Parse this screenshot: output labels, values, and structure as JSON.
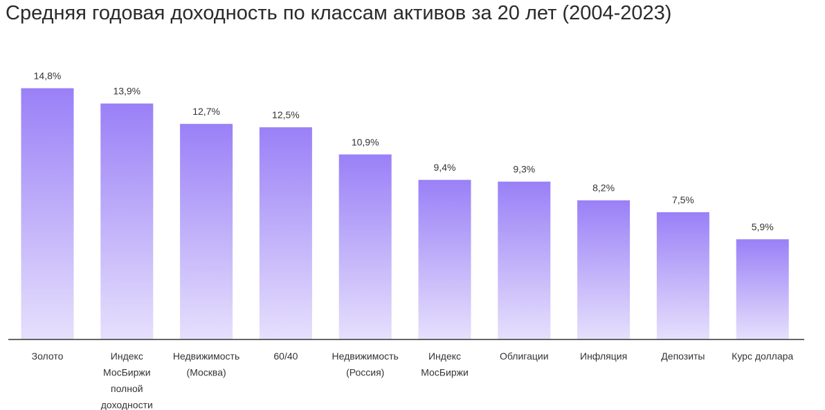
{
  "chart_data": {
    "type": "bar",
    "title": "Средняя годовая доходность по классам активов за 20 лет (2004-2023)",
    "xlabel": "",
    "ylabel": "",
    "ylim": [
      0,
      15.6
    ],
    "grid": false,
    "legend": "none",
    "categories": [
      "Золото",
      "Индекс МосБиржи полной доходности",
      "Недвижимость (Москва)",
      "60/40",
      "Недвижимость (Россия)",
      "Индекс МосБиржи",
      "Облигации",
      "Инфляция",
      "Депозиты",
      "Курс доллара"
    ],
    "category_lines": [
      [
        "Золото"
      ],
      [
        "Индекс",
        "МосБиржи",
        "полной",
        "доходности"
      ],
      [
        "Недвижимость",
        "(Москва)"
      ],
      [
        "60/40"
      ],
      [
        "Недвижимость",
        "(Россия)"
      ],
      [
        "Индекс",
        "МосБиржи"
      ],
      [
        "Облигации"
      ],
      [
        "Инфляция"
      ],
      [
        "Депозиты"
      ],
      [
        "Курс доллара"
      ]
    ],
    "values": [
      14.8,
      13.9,
      12.7,
      12.5,
      10.9,
      9.4,
      9.3,
      8.2,
      7.5,
      5.9
    ],
    "value_labels": [
      "14,8%",
      "13,9%",
      "12,7%",
      "12,5%",
      "10,9%",
      "9,4%",
      "9,3%",
      "8,2%",
      "7,5%",
      "5,9%"
    ],
    "colors": {
      "bar_top": "#9a80f7",
      "bar_bottom": "#e6e0fc",
      "axis": "#333333"
    }
  }
}
